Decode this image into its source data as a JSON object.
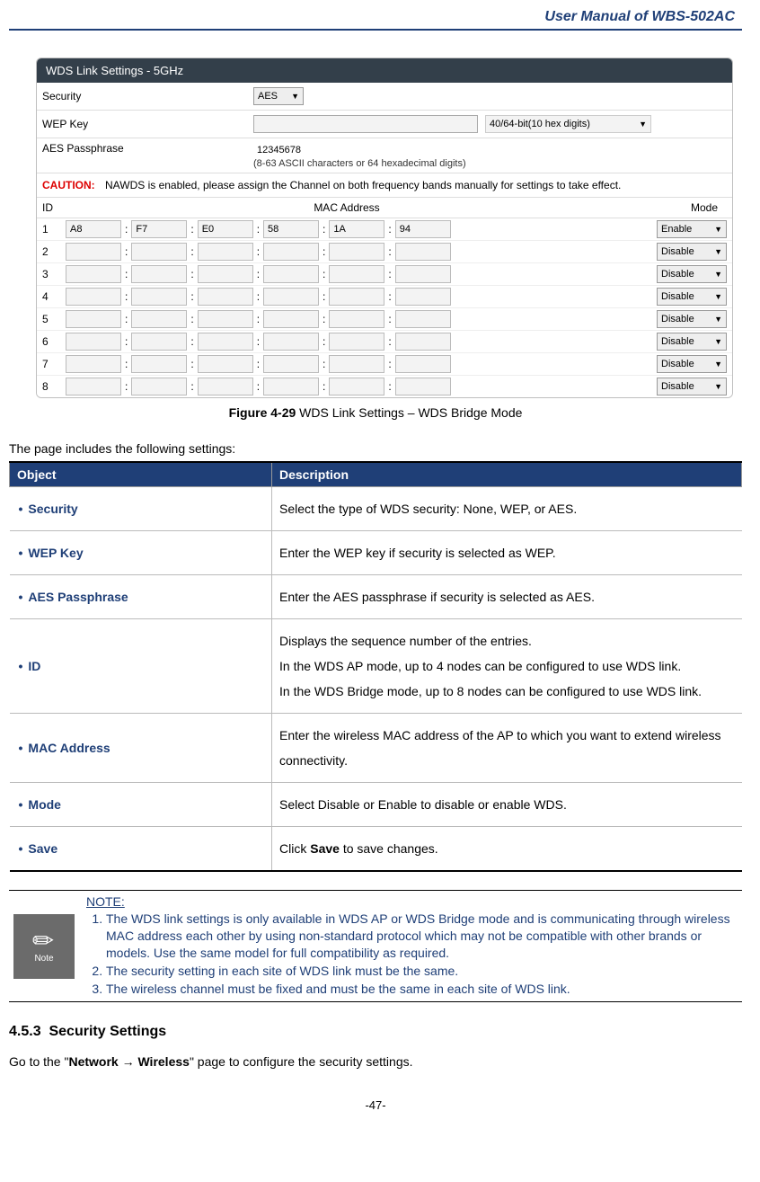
{
  "header": {
    "title": "User  Manual  of  WBS-502AC"
  },
  "ui": {
    "title": "WDS Link Settings - 5GHz",
    "security_label": "Security",
    "security_value": "AES",
    "wep_label": "WEP Key",
    "wep_value": "",
    "wep_select": "40/64-bit(10 hex digits)",
    "aes_label": "AES Passphrase",
    "aes_value": "12345678",
    "aes_hint": "(8-63 ASCII characters or 64 hexadecimal digits)",
    "caution_label": "CAUTION:",
    "caution_text": "NAWDS is enabled, please assign the Channel on both frequency bands manually for settings to take effect.",
    "col_id": "ID",
    "col_mac": "MAC Address",
    "col_mode": "Mode",
    "rows": [
      {
        "id": "1",
        "mac": [
          "A8",
          "F7",
          "E0",
          "58",
          "1A",
          "94"
        ],
        "mode": "Enable"
      },
      {
        "id": "2",
        "mac": [
          "",
          "",
          "",
          "",
          "",
          ""
        ],
        "mode": "Disable"
      },
      {
        "id": "3",
        "mac": [
          "",
          "",
          "",
          "",
          "",
          ""
        ],
        "mode": "Disable"
      },
      {
        "id": "4",
        "mac": [
          "",
          "",
          "",
          "",
          "",
          ""
        ],
        "mode": "Disable"
      },
      {
        "id": "5",
        "mac": [
          "",
          "",
          "",
          "",
          "",
          ""
        ],
        "mode": "Disable"
      },
      {
        "id": "6",
        "mac": [
          "",
          "",
          "",
          "",
          "",
          ""
        ],
        "mode": "Disable"
      },
      {
        "id": "7",
        "mac": [
          "",
          "",
          "",
          "",
          "",
          ""
        ],
        "mode": "Disable"
      },
      {
        "id": "8",
        "mac": [
          "",
          "",
          "",
          "",
          "",
          ""
        ],
        "mode": "Disable"
      }
    ]
  },
  "figure": {
    "label": "Figure 4-29",
    "text": " WDS Link Settings – WDS Bridge Mode"
  },
  "intro": "The page includes the following settings:",
  "table": {
    "head_obj": "Object",
    "head_desc": "Description",
    "rows": [
      {
        "obj": "Security",
        "desc": "Select the type of WDS security: None, WEP, or AES."
      },
      {
        "obj": "WEP Key",
        "desc": "Enter the WEP key if security is selected as WEP."
      },
      {
        "obj": "AES Passphrase",
        "desc": "Enter the AES passphrase if security is selected as AES."
      },
      {
        "obj": "ID",
        "desc": "Displays the sequence number of the entries.\nIn the WDS AP mode, up to 4 nodes can be configured to use WDS link.\nIn the WDS Bridge mode, up to 8 nodes can be configured to use WDS link."
      },
      {
        "obj": "MAC Address",
        "desc": "Enter the wireless MAC address of the AP to which you want to extend wireless connectivity."
      },
      {
        "obj": "Mode",
        "desc": "Select Disable or Enable to disable or enable WDS."
      },
      {
        "obj": "Save",
        "desc_pre": "Click ",
        "desc_bold": "Save",
        "desc_post": " to save changes."
      }
    ]
  },
  "note": {
    "icon_label": "Note",
    "title": "NOTE:",
    "items": [
      "The WDS link settings is only available in WDS AP or WDS Bridge mode and is communicating through wireless MAC address each other by using non-standard protocol which may not be compatible with other brands or models. Use the same model for full compatibility as required.",
      "The security setting in each site of WDS link must be the same.",
      "The wireless channel must be fixed and must be the same in each site of WDS link."
    ]
  },
  "section": {
    "num": "4.5.3",
    "title": "Security Settings",
    "body_pre": "Go to the \"",
    "body_bold": "Network → Wireless",
    "body_post": "\" page to configure the security settings."
  },
  "footer": "-47-"
}
